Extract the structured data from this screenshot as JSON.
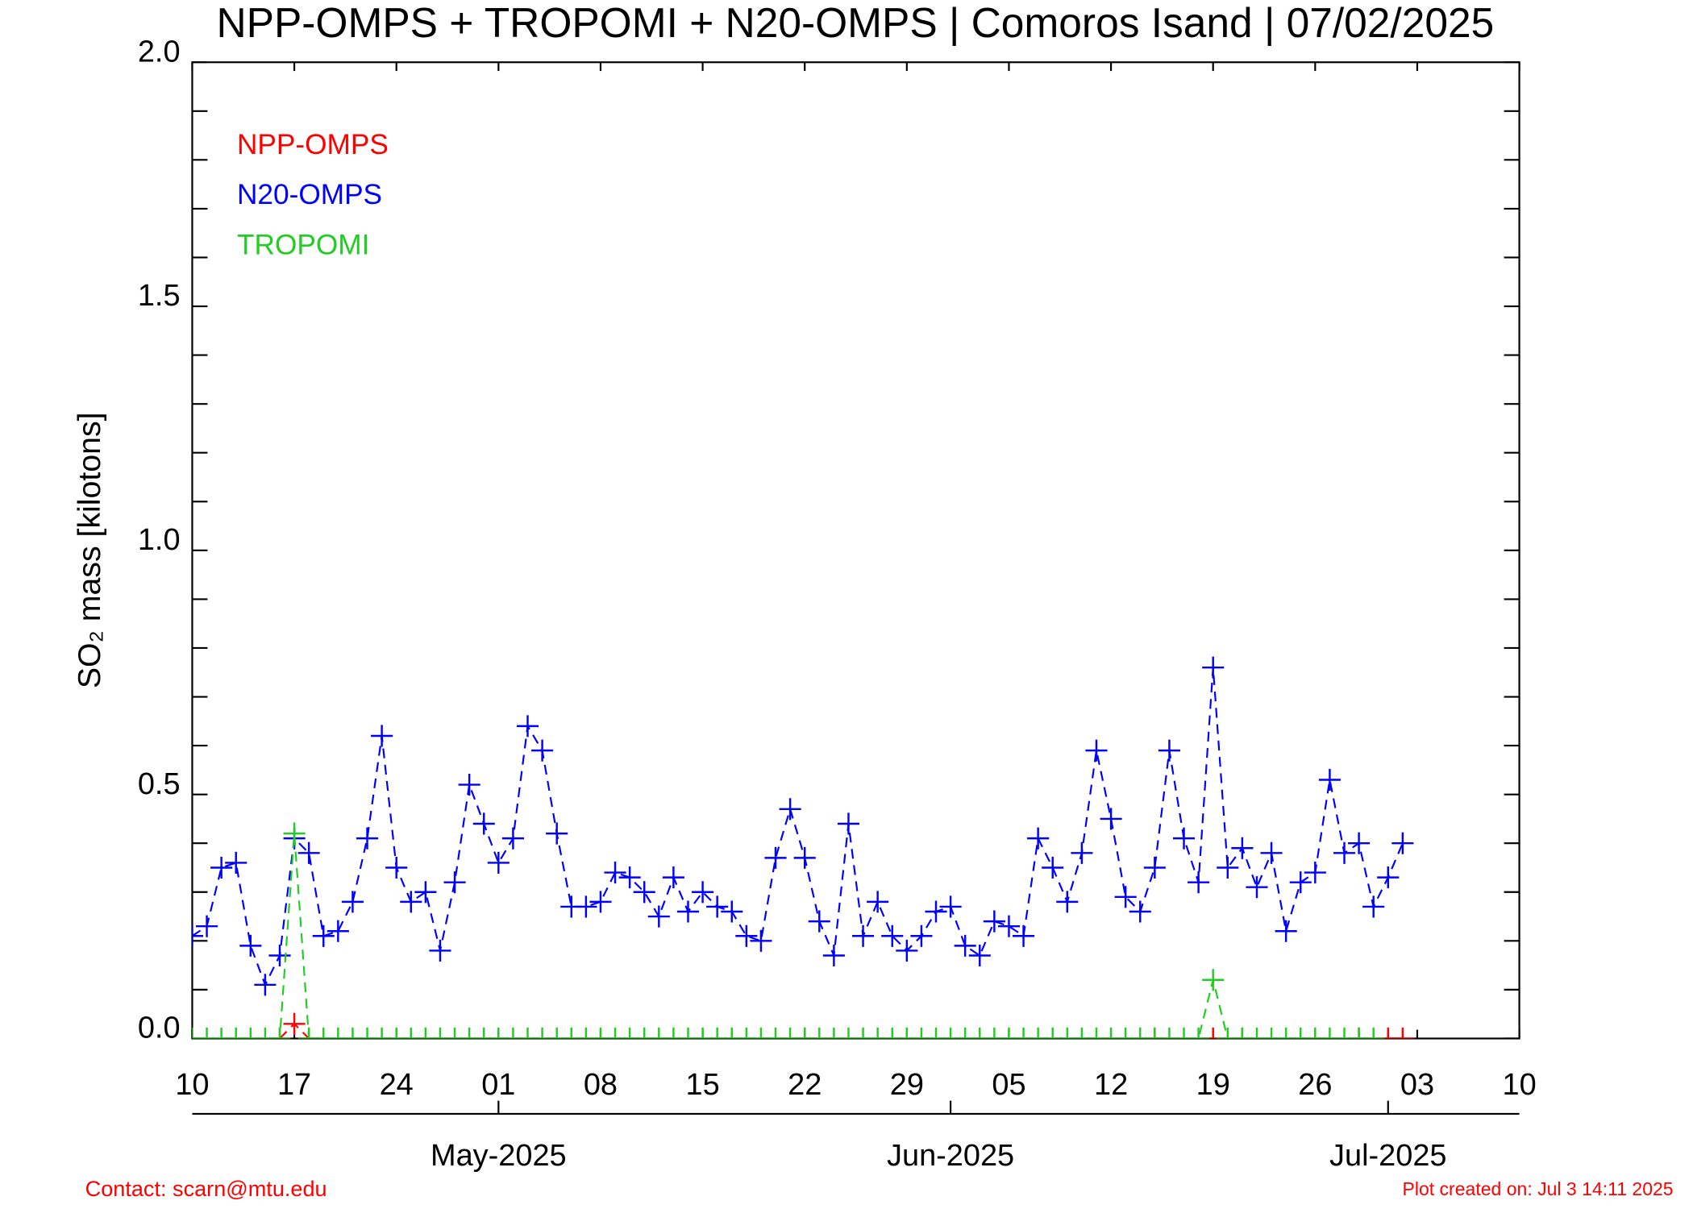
{
  "chart_data": {
    "type": "line",
    "title": "NPP-OMPS + TROPOMI + N20-OMPS | Comoros Isand | 07/02/2025",
    "y_label": "SO₂ mass [kilotons]",
    "contact": "Contact: scarn@mtu.edu",
    "created": "Plot created on: Jul  3 14:11 2025",
    "xlim": [
      "2025-04-10",
      "2025-07-10"
    ],
    "xticks": [
      {
        "value": "2025-04-10",
        "label": "10"
      },
      {
        "value": "2025-04-17",
        "label": "17"
      },
      {
        "value": "2025-04-24",
        "label": "24"
      },
      {
        "value": "2025-05-01",
        "label": "01"
      },
      {
        "value": "2025-05-08",
        "label": "08"
      },
      {
        "value": "2025-05-15",
        "label": "15"
      },
      {
        "value": "2025-05-22",
        "label": "22"
      },
      {
        "value": "2025-05-29",
        "label": "29"
      },
      {
        "value": "2025-06-05",
        "label": "05"
      },
      {
        "value": "2025-06-12",
        "label": "12"
      },
      {
        "value": "2025-06-19",
        "label": "19"
      },
      {
        "value": "2025-06-26",
        "label": "26"
      },
      {
        "value": "2025-07-03",
        "label": "03"
      },
      {
        "value": "2025-07-10",
        "label": "10"
      }
    ],
    "x2ticks": [
      {
        "value": "2025-05-01",
        "label": "May-2025"
      },
      {
        "value": "2025-06-01",
        "label": "Jun-2025"
      },
      {
        "value": "2025-07-01",
        "label": "Jul-2025"
      }
    ],
    "ylim": [
      0,
      2.0
    ],
    "yticks": [
      {
        "value": 0,
        "label": "0.0"
      },
      {
        "value": 0.5,
        "label": "0.5"
      },
      {
        "value": 1.0,
        "label": "1.0"
      },
      {
        "value": 1.5,
        "label": "1.5"
      },
      {
        "value": 2.0,
        "label": "2.0"
      }
    ],
    "yminorticks": [
      0.1,
      0.2,
      0.3,
      0.4,
      0.6,
      0.7,
      0.8,
      0.9,
      1.1,
      1.2,
      1.3,
      1.4,
      1.6,
      1.7,
      1.8,
      1.9
    ],
    "series": [
      {
        "name": "NPP-OMPS",
        "color": "#ff0000",
        "x": [
          "2025-04-16",
          "2025-04-17",
          "2025-04-18",
          "2025-05-22",
          "2025-06-15",
          "2025-06-19",
          "2025-06-21",
          "2025-06-29",
          "2025-07-01",
          "2025-07-02"
        ],
        "values": [
          0,
          0.03,
          0,
          0,
          0,
          0,
          0,
          0,
          0,
          0
        ]
      },
      {
        "name": "N20-OMPS",
        "color": "#0000ff",
        "x": [
          "2025-04-10",
          "2025-04-11",
          "2025-04-12",
          "2025-04-13",
          "2025-04-14",
          "2025-04-15",
          "2025-04-16",
          "2025-04-17",
          "2025-04-18",
          "2025-04-19",
          "2025-04-20",
          "2025-04-21",
          "2025-04-22",
          "2025-04-23",
          "2025-04-24",
          "2025-04-25",
          "2025-04-26",
          "2025-04-27",
          "2025-04-28",
          "2025-04-29",
          "2025-04-30",
          "2025-05-01",
          "2025-05-02",
          "2025-05-03",
          "2025-05-04",
          "2025-05-05",
          "2025-05-06",
          "2025-05-07",
          "2025-05-08",
          "2025-05-09",
          "2025-05-10",
          "2025-05-11",
          "2025-05-12",
          "2025-05-13",
          "2025-05-14",
          "2025-05-15",
          "2025-05-16",
          "2025-05-17",
          "2025-05-18",
          "2025-05-19",
          "2025-05-20",
          "2025-05-21",
          "2025-05-22",
          "2025-05-23",
          "2025-05-24",
          "2025-05-25",
          "2025-05-26",
          "2025-05-27",
          "2025-05-28",
          "2025-05-29",
          "2025-05-30",
          "2025-05-31",
          "2025-06-01",
          "2025-06-02",
          "2025-06-03",
          "2025-06-04",
          "2025-06-05",
          "2025-06-06",
          "2025-06-07",
          "2025-06-08",
          "2025-06-09",
          "2025-06-10",
          "2025-06-11",
          "2025-06-12",
          "2025-06-13",
          "2025-06-14",
          "2025-06-15",
          "2025-06-16",
          "2025-06-17",
          "2025-06-18",
          "2025-06-19",
          "2025-06-20",
          "2025-06-21",
          "2025-06-22",
          "2025-06-23",
          "2025-06-24",
          "2025-06-25",
          "2025-06-26",
          "2025-06-27",
          "2025-06-28",
          "2025-06-29",
          "2025-06-30",
          "2025-07-01",
          "2025-07-02"
        ],
        "values": [
          0.21,
          0.23,
          0.35,
          0.36,
          0.19,
          0.11,
          0.17,
          0.41,
          0.38,
          0.21,
          0.22,
          0.28,
          0.41,
          0.62,
          0.35,
          0.28,
          0.3,
          0.18,
          0.32,
          0.52,
          0.44,
          0.36,
          0.41,
          0.64,
          0.59,
          0.42,
          0.27,
          0.27,
          0.28,
          0.34,
          0.33,
          0.3,
          0.25,
          0.33,
          0.26,
          0.3,
          0.27,
          0.26,
          0.21,
          0.2,
          0.37,
          0.47,
          0.37,
          0.24,
          0.17,
          0.44,
          0.21,
          0.28,
          0.21,
          0.18,
          0.21,
          0.26,
          0.27,
          0.19,
          0.17,
          0.24,
          0.23,
          0.21,
          0.41,
          0.35,
          0.28,
          0.38,
          0.59,
          0.45,
          0.29,
          0.26,
          0.35,
          0.59,
          0.41,
          0.32,
          0.76,
          0.35,
          0.39,
          0.31,
          0.38,
          0.22,
          0.32,
          0.34,
          0.53,
          0.38,
          0.4,
          0.27,
          0.33,
          0.4
        ]
      },
      {
        "name": "TROPOMI",
        "color": "#22cc22",
        "x": [
          "2025-04-10",
          "2025-04-11",
          "2025-04-12",
          "2025-04-13",
          "2025-04-14",
          "2025-04-15",
          "2025-04-16",
          "2025-04-17",
          "2025-04-18",
          "2025-04-19",
          "2025-04-20",
          "2025-04-21",
          "2025-04-22",
          "2025-04-23",
          "2025-04-24",
          "2025-04-25",
          "2025-04-26",
          "2025-04-27",
          "2025-04-28",
          "2025-04-29",
          "2025-04-30",
          "2025-05-01",
          "2025-05-02",
          "2025-05-03",
          "2025-05-04",
          "2025-05-05",
          "2025-05-06",
          "2025-05-07",
          "2025-05-08",
          "2025-05-09",
          "2025-05-10",
          "2025-05-11",
          "2025-05-12",
          "2025-05-13",
          "2025-05-14",
          "2025-05-15",
          "2025-05-16",
          "2025-05-17",
          "2025-05-18",
          "2025-05-19",
          "2025-05-20",
          "2025-05-21",
          "2025-05-22",
          "2025-05-23",
          "2025-05-24",
          "2025-05-25",
          "2025-05-26",
          "2025-05-27",
          "2025-05-28",
          "2025-05-29",
          "2025-05-30",
          "2025-05-31",
          "2025-06-01",
          "2025-06-02",
          "2025-06-03",
          "2025-06-04",
          "2025-06-05",
          "2025-06-06",
          "2025-06-07",
          "2025-06-08",
          "2025-06-09",
          "2025-06-10",
          "2025-06-11",
          "2025-06-12",
          "2025-06-13",
          "2025-06-14",
          "2025-06-15",
          "2025-06-16",
          "2025-06-17",
          "2025-06-18",
          "2025-06-19",
          "2025-06-20",
          "2025-06-21",
          "2025-06-22",
          "2025-06-23",
          "2025-06-24",
          "2025-06-25",
          "2025-06-26",
          "2025-06-27",
          "2025-06-28",
          "2025-06-29",
          "2025-06-30"
        ],
        "values": [
          0,
          0,
          0,
          0,
          0,
          0,
          0,
          0.42,
          0,
          0,
          0,
          0,
          0,
          0,
          0,
          0,
          0,
          0,
          0,
          0,
          0,
          0,
          0,
          0,
          0,
          0,
          0,
          0,
          0,
          0,
          0,
          0,
          0,
          0,
          0,
          0,
          0,
          0,
          0,
          0,
          0,
          0,
          0,
          0,
          0,
          0,
          0,
          0,
          0,
          0,
          0,
          0,
          0,
          0,
          0,
          0,
          0,
          0,
          0,
          0,
          0,
          0,
          0,
          0,
          0,
          0,
          0,
          0,
          0,
          0,
          0.12,
          0,
          0,
          0,
          0,
          0,
          0,
          0,
          0,
          0,
          0,
          0
        ]
      }
    ],
    "legend": "upper-left"
  }
}
